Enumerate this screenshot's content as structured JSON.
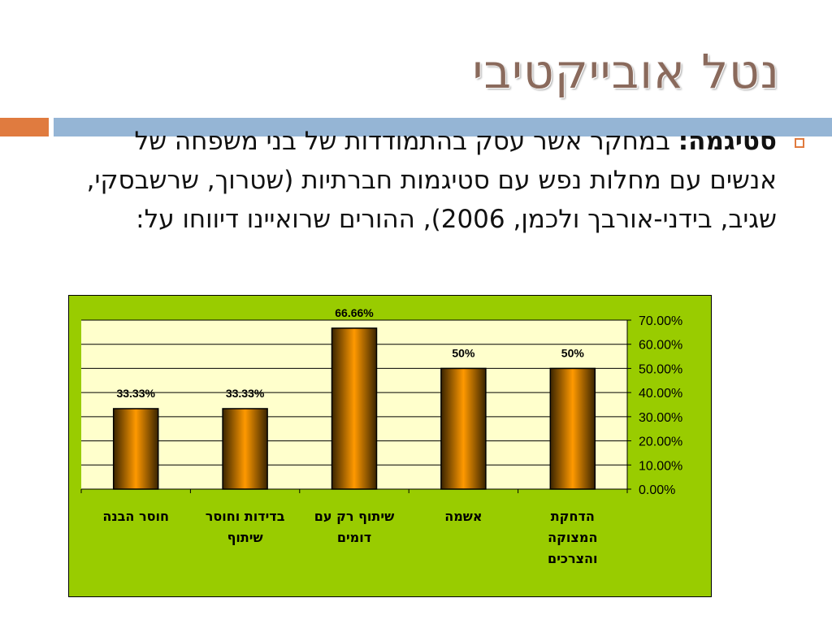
{
  "slide": {
    "title": "נטל אובייקטיבי",
    "bullet_label": "סטיגמה:",
    "bullet_text": " במחקר אשר עסק בהתמודדות של בני משפחה של אנשים עם מחלות נפש עם סטיגמות חברתיות (שטרוך, שרשבסקי, שגיב, בידני-אורבך ולכמן, 2006), ההורים שרואיינו דיווחו על:",
    "colors": {
      "title": "#8a6a5c",
      "accent_orange": "#e07b3f",
      "accent_blue": "#95b5d5",
      "chart_background": "#99cc00",
      "plot_background": "#ffffcc",
      "bar_edge": "#3a2400",
      "bar_center": "#ff9900"
    }
  },
  "chart_data": {
    "type": "bar",
    "categories": [
      [
        "הדחקת",
        "המצוקה",
        "והצרכים"
      ],
      [
        "אשמה"
      ],
      [
        "שיתוף רק עם",
        "דומים"
      ],
      [
        "בדידות וחוסר",
        "שיתוף"
      ],
      [
        "חוסר הבנה"
      ]
    ],
    "values": [
      0.5,
      0.5,
      0.6666,
      0.3333,
      0.3333
    ],
    "data_labels": [
      "50%",
      "50%",
      "66.66%",
      "33.33%",
      "33.33%"
    ],
    "y_tick_labels": [
      "0.00%",
      "10.00%",
      "20.00%",
      "30.00%",
      "40.00%",
      "50.00%",
      "60.00%",
      "70.00%"
    ],
    "ylim": [
      0,
      0.7
    ],
    "y_axis_side": "right",
    "grid": true,
    "legend": "none"
  }
}
